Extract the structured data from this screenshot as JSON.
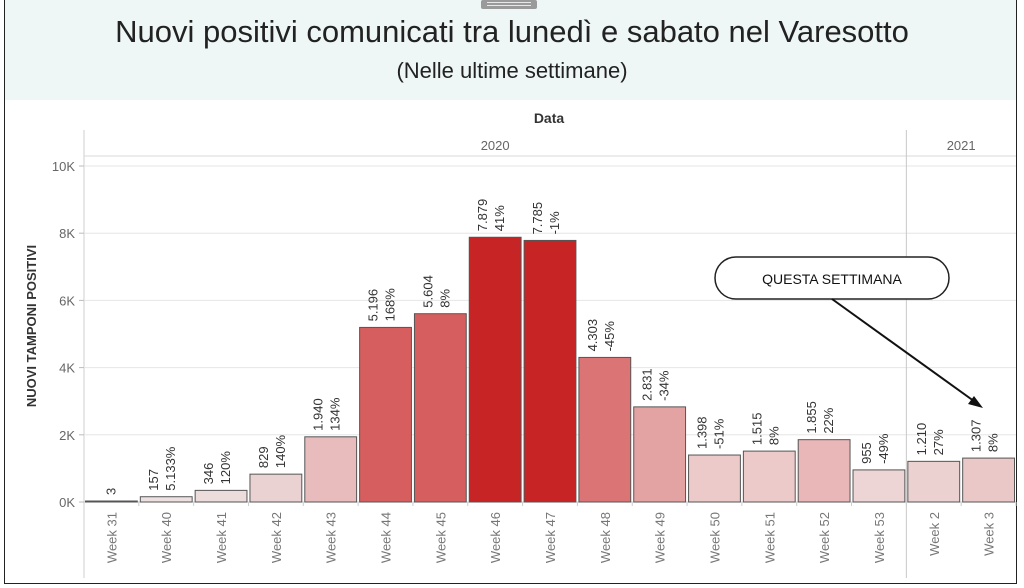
{
  "title": "Nuovi positivi comunicati tra lunedì e sabato nel Varesotto",
  "subtitle": "(Nelle ultime settimane)",
  "callout": "QUESTA SETTIMANA",
  "chart_data": {
    "type": "bar",
    "xlabel": "Data",
    "ylabel": "NUOVI TAMPONI POSITIVI",
    "ylim": [
      0,
      10000
    ],
    "yticks": [
      {
        "value": 0,
        "label": "0K"
      },
      {
        "value": 2000,
        "label": "2K"
      },
      {
        "value": 4000,
        "label": "4K"
      },
      {
        "value": 6000,
        "label": "6K"
      },
      {
        "value": 8000,
        "label": "8K"
      },
      {
        "value": 10000,
        "label": "10K"
      }
    ],
    "grid": true,
    "year_groups": [
      {
        "label": "2020",
        "from": 0,
        "to": 14
      },
      {
        "label": "2021",
        "from": 15,
        "to": 16
      }
    ],
    "categories": [
      "Week 31",
      "Week 40",
      "Week 41",
      "Week 42",
      "Week 43",
      "Week 44",
      "Week 45",
      "Week 46",
      "Week 47",
      "Week 48",
      "Week 49",
      "Week 50",
      "Week 51",
      "Week 52",
      "Week 53",
      "Week 2",
      "Week 3"
    ],
    "values": [
      3,
      157,
      346,
      829,
      1940,
      5196,
      5604,
      7879,
      7785,
      4303,
      2831,
      1398,
      1515,
      1855,
      955,
      1210,
      1307
    ],
    "value_labels": [
      "3",
      "157",
      "346",
      "829",
      "1.940",
      "5.196",
      "5.604",
      "7.879",
      "7.785",
      "4.303",
      "2.831",
      "1.398",
      "1.515",
      "1.855",
      "955",
      "1.210",
      "1.307"
    ],
    "pct_labels": [
      "",
      "5.133%",
      "120%",
      "140%",
      "134%",
      "168%",
      "8%",
      "41%",
      "-1%",
      "-45%",
      "-34%",
      "-51%",
      "8%",
      "22%",
      "-49%",
      "27%",
      "8%"
    ],
    "colors": [
      "#eee0e0",
      "#eee0e0",
      "#ecdcdc",
      "#ead2d2",
      "#e8bcbc",
      "#d75e5e",
      "#d75e5e",
      "#c72525",
      "#c72525",
      "#db7575",
      "#e4a3a3",
      "#edcaca",
      "#edcaca",
      "#e9b7b7",
      "#eed5d5",
      "#ecd1d1",
      "#ebc8c8"
    ],
    "highlight_index": 16
  }
}
